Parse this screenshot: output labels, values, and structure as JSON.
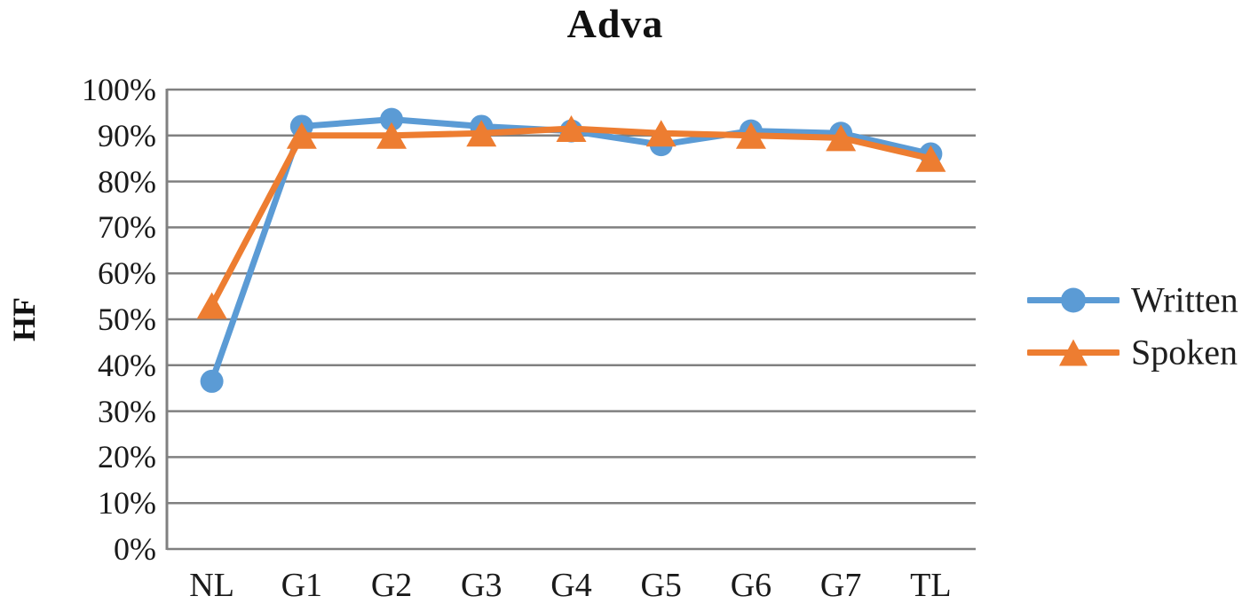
{
  "chart_data": {
    "type": "line",
    "title": "Adva",
    "xlabel": "",
    "ylabel": "HF",
    "categories": [
      "NL",
      "G1",
      "G2",
      "G3",
      "G4",
      "G5",
      "G6",
      "G7",
      "TL"
    ],
    "series": [
      {
        "name": "Written",
        "marker": "circle",
        "color": "#5B9BD5",
        "values": [
          36.5,
          92,
          93.5,
          92,
          91,
          88,
          91,
          90.5,
          86
        ]
      },
      {
        "name": "Spoken",
        "marker": "triangle",
        "color": "#ED7D31",
        "values": [
          53,
          90,
          90,
          90.5,
          91.5,
          90.5,
          90,
          89.5,
          85
        ]
      }
    ],
    "ylim": [
      0,
      100
    ],
    "ytick_step": 10,
    "ytick_labels": [
      "0%",
      "10%",
      "20%",
      "30%",
      "40%",
      "50%",
      "60%",
      "70%",
      "80%",
      "90%",
      "100%"
    ],
    "grid": "horizontal",
    "grid_color": "#808080",
    "axis_color": "#808080",
    "text_color": "#1a1a1a",
    "legend_position": "right"
  }
}
